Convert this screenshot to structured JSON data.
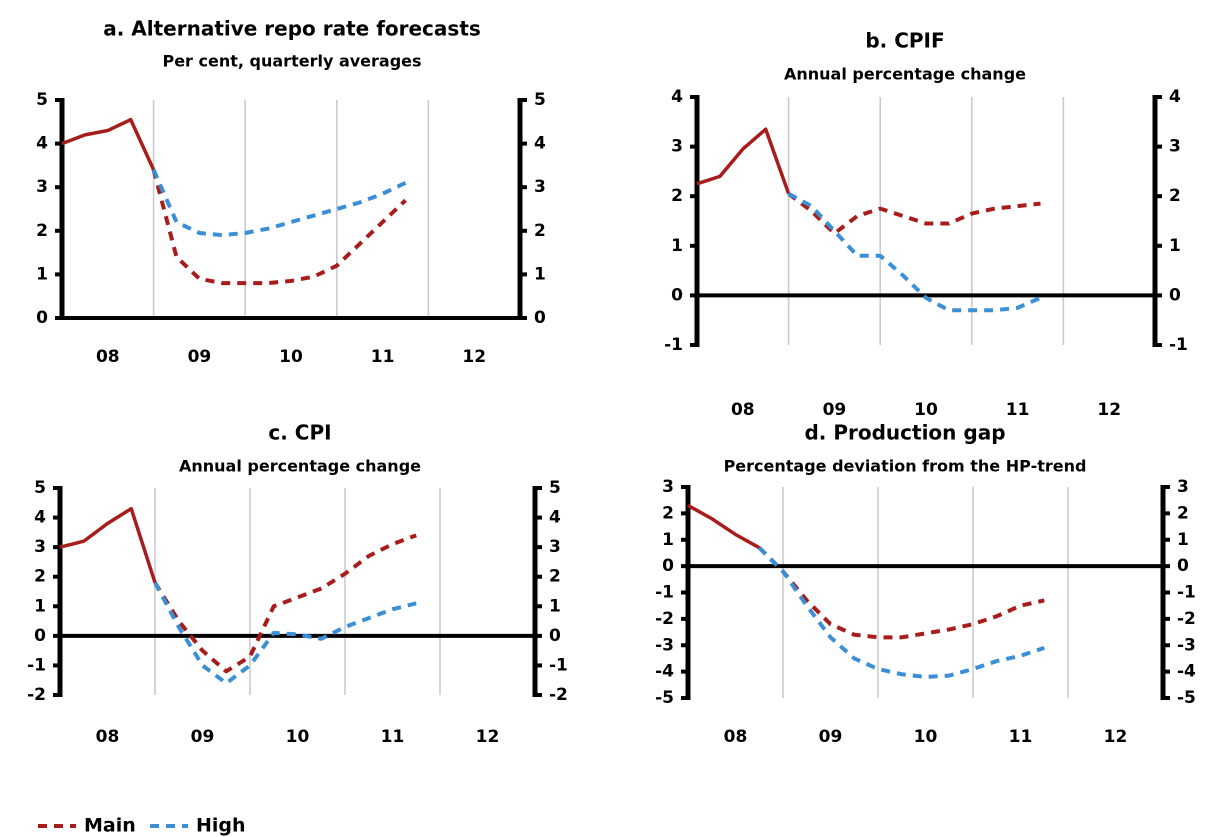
{
  "chart_data": [
    {
      "type": "line",
      "title": "a. Alternative repo rate forecasts",
      "subtitle": "Per cent, quarterly averages",
      "x": [
        2008,
        2008.25,
        2008.5,
        2008.75,
        2009,
        2009.25,
        2009.5,
        2009.75,
        2010,
        2010.25,
        2010.5,
        2010.75,
        2011,
        2011.25,
        2011.5,
        2011.75
      ],
      "xlim": [
        2008,
        2013
      ],
      "xticks": [
        {
          "value": 2008.5,
          "label": "08"
        },
        {
          "value": 2009.5,
          "label": "09"
        },
        {
          "value": 2010.5,
          "label": "10"
        },
        {
          "value": 2011.5,
          "label": "11"
        },
        {
          "value": 2012.5,
          "label": "12"
        }
      ],
      "ylim": [
        0,
        5
      ],
      "yticks": [
        0,
        1,
        2,
        3,
        4,
        5
      ],
      "y2lim": [
        0,
        5
      ],
      "y2ticks": [
        0,
        1,
        2,
        3,
        4,
        5
      ],
      "grid": true,
      "zero_line": true,
      "series": [
        {
          "color": "#a81c1c",
          "style": "solid",
          "values": [
            4.0,
            4.2,
            4.3,
            4.55,
            3.4,
            null,
            null,
            null,
            null,
            null,
            null,
            null,
            null,
            null,
            null,
            null
          ]
        },
        {
          "name": "Main",
          "color": "#a81c1c",
          "style": "dashed",
          "values": [
            null,
            null,
            null,
            null,
            3.4,
            1.4,
            0.9,
            0.8,
            0.8,
            0.8,
            0.85,
            0.95,
            1.2,
            1.7,
            2.2,
            2.7
          ]
        },
        {
          "name": "High",
          "color": "#3a8fd6",
          "style": "dashed",
          "values": [
            null,
            null,
            null,
            null,
            3.4,
            2.2,
            1.95,
            1.9,
            1.95,
            2.05,
            2.2,
            2.35,
            2.5,
            2.65,
            2.85,
            3.1
          ]
        }
      ]
    },
    {
      "type": "line",
      "title": "b. CPIF",
      "subtitle": "Annual percentage change",
      "x": [
        2008,
        2008.25,
        2008.5,
        2008.75,
        2009,
        2009.25,
        2009.5,
        2009.75,
        2010,
        2010.25,
        2010.5,
        2010.75,
        2011,
        2011.25,
        2011.5,
        2011.75
      ],
      "xlim": [
        2008,
        2013
      ],
      "xticks": [
        {
          "value": 2008.5,
          "label": "08"
        },
        {
          "value": 2009.5,
          "label": "09"
        },
        {
          "value": 2010.5,
          "label": "10"
        },
        {
          "value": 2011.5,
          "label": "11"
        },
        {
          "value": 2012.5,
          "label": "12"
        }
      ],
      "ylim": [
        -1,
        4
      ],
      "yticks": [
        -1,
        0,
        1,
        2,
        3,
        4
      ],
      "y2lim": [
        -1,
        4
      ],
      "y2ticks": [
        -1,
        0,
        1,
        2,
        3,
        4
      ],
      "grid": true,
      "zero_line": true,
      "series": [
        {
          "color": "#a81c1c",
          "style": "solid",
          "values": [
            2.25,
            2.4,
            2.95,
            3.35,
            2.05,
            null,
            null,
            null,
            null,
            null,
            null,
            null,
            null,
            null,
            null,
            null
          ]
        },
        {
          "name": "Main",
          "color": "#a81c1c",
          "style": "dashed",
          "values": [
            null,
            null,
            null,
            null,
            2.05,
            1.7,
            1.25,
            1.6,
            1.75,
            1.6,
            1.45,
            1.45,
            1.65,
            1.75,
            1.8,
            1.85
          ]
        },
        {
          "name": "High",
          "color": "#3a8fd6",
          "style": "dashed",
          "values": [
            null,
            null,
            null,
            null,
            2.05,
            1.8,
            1.3,
            0.8,
            0.8,
            0.4,
            -0.05,
            -0.3,
            -0.3,
            -0.3,
            -0.25,
            -0.05
          ]
        }
      ]
    },
    {
      "type": "line",
      "title": "c. CPI",
      "subtitle": "Annual percentage change",
      "x": [
        2008,
        2008.25,
        2008.5,
        2008.75,
        2009,
        2009.25,
        2009.5,
        2009.75,
        2010,
        2010.25,
        2010.5,
        2010.75,
        2011,
        2011.25,
        2011.5,
        2011.75
      ],
      "xlim": [
        2008,
        2013
      ],
      "xticks": [
        {
          "value": 2008.5,
          "label": "08"
        },
        {
          "value": 2009.5,
          "label": "09"
        },
        {
          "value": 2010.5,
          "label": "10"
        },
        {
          "value": 2011.5,
          "label": "11"
        },
        {
          "value": 2012.5,
          "label": "12"
        }
      ],
      "ylim": [
        -2,
        5
      ],
      "yticks": [
        -2,
        -1,
        0,
        1,
        2,
        3,
        4,
        5
      ],
      "y2lim": [
        -2,
        5
      ],
      "y2ticks": [
        -2,
        -1,
        0,
        1,
        2,
        3,
        4,
        5
      ],
      "grid": true,
      "zero_line": true,
      "series": [
        {
          "color": "#a81c1c",
          "style": "solid",
          "values": [
            3.0,
            3.2,
            3.8,
            4.3,
            1.8,
            null,
            null,
            null,
            null,
            null,
            null,
            null,
            null,
            null,
            null,
            null
          ]
        },
        {
          "name": "Main",
          "color": "#a81c1c",
          "style": "dashed",
          "values": [
            null,
            null,
            null,
            null,
            1.8,
            0.5,
            -0.5,
            -1.2,
            -0.7,
            1.0,
            1.3,
            1.6,
            2.1,
            2.7,
            3.1,
            3.4
          ]
        },
        {
          "name": "High",
          "color": "#3a8fd6",
          "style": "dashed",
          "values": [
            null,
            null,
            null,
            null,
            1.8,
            0.3,
            -1.0,
            -1.6,
            -1.0,
            0.1,
            0.05,
            -0.1,
            0.3,
            0.6,
            0.9,
            1.1
          ]
        }
      ]
    },
    {
      "type": "line",
      "title": "d.  Production gap",
      "subtitle": "Percentage deviation from the HP-trend",
      "x": [
        2008,
        2008.25,
        2008.5,
        2008.75,
        2009,
        2009.25,
        2009.5,
        2009.75,
        2010,
        2010.25,
        2010.5,
        2010.75,
        2011,
        2011.25,
        2011.5,
        2011.75
      ],
      "xlim": [
        2008,
        2013
      ],
      "xticks": [
        {
          "value": 2008.5,
          "label": "08"
        },
        {
          "value": 2009.5,
          "label": "09"
        },
        {
          "value": 2010.5,
          "label": "10"
        },
        {
          "value": 2011.5,
          "label": "11"
        },
        {
          "value": 2012.5,
          "label": "12"
        }
      ],
      "ylim": [
        -5,
        3
      ],
      "yticks": [
        -5,
        -4,
        -3,
        -2,
        -1,
        0,
        1,
        2,
        3
      ],
      "y2lim": [
        -5,
        3
      ],
      "y2ticks": [
        -5,
        -4,
        -3,
        -2,
        -1,
        0,
        1,
        2,
        3
      ],
      "grid": true,
      "zero_line": true,
      "series": [
        {
          "color": "#a81c1c",
          "style": "solid",
          "values": [
            2.3,
            1.8,
            1.2,
            0.7,
            null,
            null,
            null,
            null,
            null,
            null,
            null,
            null,
            null,
            null,
            null,
            null
          ]
        },
        {
          "name": "Main",
          "color": "#a81c1c",
          "style": "dashed",
          "values": [
            null,
            null,
            null,
            0.7,
            -0.2,
            -1.3,
            -2.2,
            -2.6,
            -2.7,
            -2.7,
            -2.55,
            -2.4,
            -2.2,
            -1.9,
            -1.5,
            -1.3
          ]
        },
        {
          "name": "High",
          "color": "#3a8fd6",
          "style": "dashed",
          "values": [
            null,
            null,
            null,
            0.7,
            -0.2,
            -1.5,
            -2.7,
            -3.5,
            -3.9,
            -4.1,
            -4.2,
            -4.15,
            -3.9,
            -3.6,
            -3.4,
            -3.1
          ]
        }
      ]
    }
  ]
}
